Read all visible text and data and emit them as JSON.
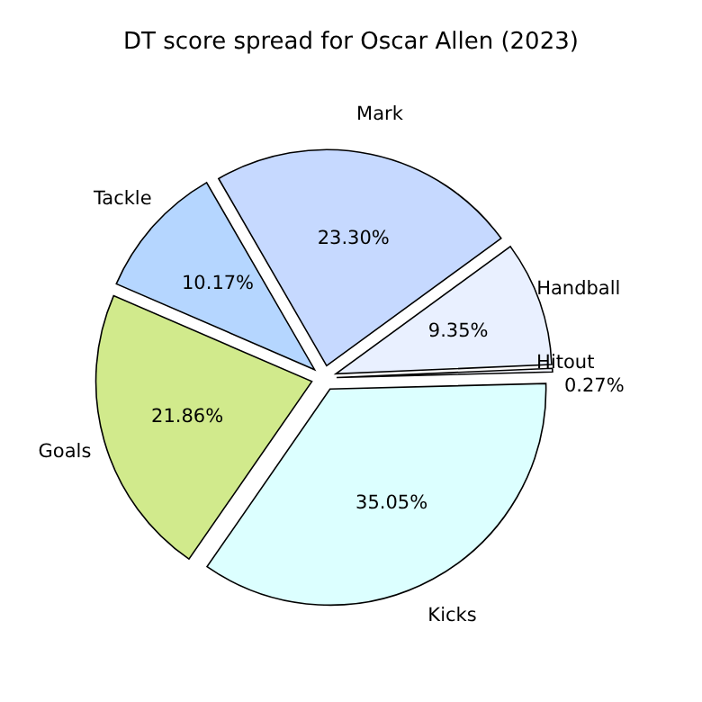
{
  "chart_data": {
    "type": "pie",
    "title": "DT score spread for Oscar Allen (2023)",
    "categories": [
      "Mark",
      "Handball",
      "Hitout",
      "Kicks",
      "Goals",
      "Tackle"
    ],
    "values": [
      23.3,
      9.35,
      0.27,
      35.05,
      21.86,
      10.17
    ],
    "colors": [
      "#c6d9ff",
      "#e9f0ff",
      "#f6f8ff",
      "#dcffff",
      "#d1ea8c",
      "#b5d6ff"
    ],
    "value_labels": [
      "23.30%",
      "9.35%",
      "0.27%",
      "35.05%",
      "21.86%",
      "10.17%"
    ]
  }
}
